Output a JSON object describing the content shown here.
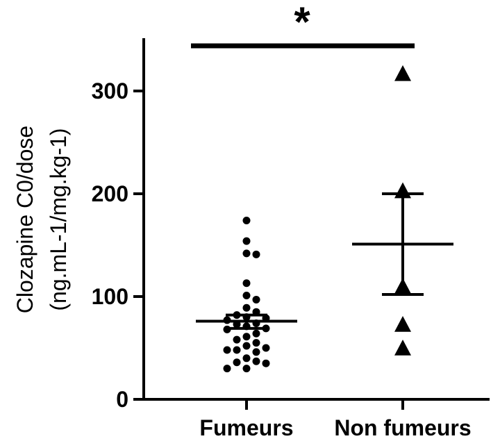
{
  "chart_data": {
    "type": "scatter",
    "ylabel_line1": "Clozapine C0/dose",
    "ylabel_line2": "(ng.mL-1/mg.kg-1)",
    "ylim": [
      0,
      350
    ],
    "yticks": [
      0,
      100,
      200,
      300
    ],
    "categories": [
      "Fumeurs",
      "Non fumeurs"
    ],
    "significance": "*",
    "groups": [
      {
        "category": "Fumeurs",
        "marker": "circle",
        "values": [
          174,
          154,
          142,
          141,
          113,
          101,
          97,
          89,
          85,
          82,
          80,
          79,
          77,
          74,
          73,
          71,
          69,
          68,
          64,
          61,
          58,
          55,
          52,
          50,
          48,
          48,
          46,
          40,
          37,
          36,
          35,
          30,
          30
        ],
        "mean": 76,
        "error_low": 69,
        "error_high": 82
      },
      {
        "category": "Non fumeurs",
        "marker": "triangle",
        "values": [
          317,
          203,
          110,
          73,
          50
        ],
        "mean": 151,
        "error_low": 102,
        "error_high": 200
      }
    ]
  }
}
